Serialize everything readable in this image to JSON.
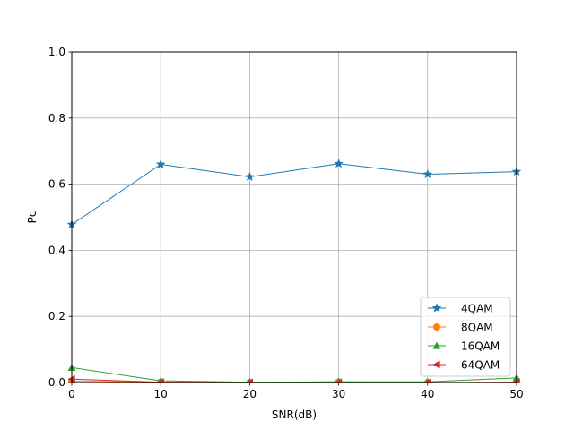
{
  "chart_data": {
    "type": "line",
    "title": "",
    "xlabel": "SNR(dB)",
    "ylabel": "Pc",
    "xlim": [
      0,
      50
    ],
    "ylim": [
      0,
      1.0
    ],
    "x_ticks": [
      "0",
      "10",
      "20",
      "30",
      "40",
      "50"
    ],
    "y_ticks": [
      "0.0",
      "0.2",
      "0.4",
      "0.6",
      "0.8",
      "1.0"
    ],
    "grid": true,
    "legend_position": "lower-right",
    "x": [
      0,
      10,
      20,
      30,
      40,
      50
    ],
    "series": [
      {
        "name": "4QAM",
        "color": "#1f77b4",
        "marker": "star",
        "values": [
          0.478,
          0.66,
          0.622,
          0.662,
          0.63,
          0.638
        ]
      },
      {
        "name": "8QAM",
        "color": "#ff7f0e",
        "marker": "circle",
        "values": [
          0.004,
          0.001,
          0.0,
          0.002,
          0.0,
          0.0
        ]
      },
      {
        "name": "16QAM",
        "color": "#2ca02c",
        "marker": "triangle-up",
        "values": [
          0.045,
          0.005,
          0.001,
          0.002,
          0.002,
          0.014
        ]
      },
      {
        "name": "64QAM",
        "color": "#d62728",
        "marker": "triangle-left",
        "values": [
          0.01,
          0.001,
          0.0,
          0.0,
          0.0,
          0.001
        ]
      }
    ]
  }
}
